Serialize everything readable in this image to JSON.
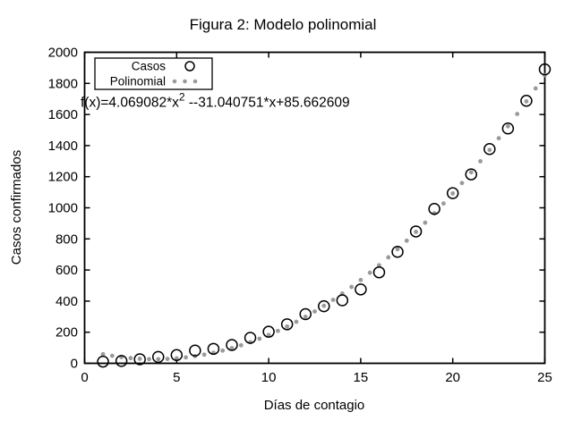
{
  "window": {
    "background": "#ffffff",
    "foreground": "#000000"
  },
  "chart_data": {
    "type": "scatter",
    "title": "Figura 2: Modelo polinomial",
    "xlabel": "Días de contagio",
    "ylabel": "Casos confirmados",
    "xlim": [
      0,
      25
    ],
    "ylim": [
      0,
      2000
    ],
    "xticks": [
      0,
      5,
      10,
      15,
      20,
      25
    ],
    "yticks": [
      0,
      200,
      400,
      600,
      800,
      1000,
      1200,
      1400,
      1600,
      1800,
      2000
    ],
    "grid": false,
    "legend_position": "top-left",
    "series": [
      {
        "name": "Casos",
        "type": "scatter",
        "marker": "open-circle",
        "color": "#000000",
        "x": [
          1,
          2,
          3,
          4,
          5,
          6,
          7,
          8,
          9,
          10,
          11,
          12,
          13,
          14,
          15,
          16,
          17,
          18,
          19,
          20,
          21,
          22,
          23,
          24,
          25
        ],
        "values": [
          11,
          15,
          26,
          41,
          53,
          82,
          93,
          118,
          164,
          203,
          251,
          316,
          367,
          405,
          475,
          585,
          717,
          848,
          993,
          1094,
          1215,
          1378,
          1510,
          1688,
          1890
        ]
      },
      {
        "name": "Polinomial",
        "type": "dotted-curve",
        "marker": "dot",
        "color": "#9a9a9a",
        "equation": "f(x)=4.069082*x^2 -31.040751*x+85.662609",
        "coefficients": {
          "a": 4.069082,
          "b": -31.040751,
          "c": 85.662609
        },
        "x_start": 1,
        "x_end": 25,
        "x_step": 0.5
      }
    ],
    "annotation": {
      "pre": "f(x)=4.069082*x",
      "sup": "2",
      "post": " --31.040751*x+85.662609"
    }
  },
  "legend": {
    "entries": [
      {
        "label": "Casos",
        "marker": "open-circle"
      },
      {
        "label": "Polinomial",
        "marker": "gray-dots"
      }
    ]
  }
}
